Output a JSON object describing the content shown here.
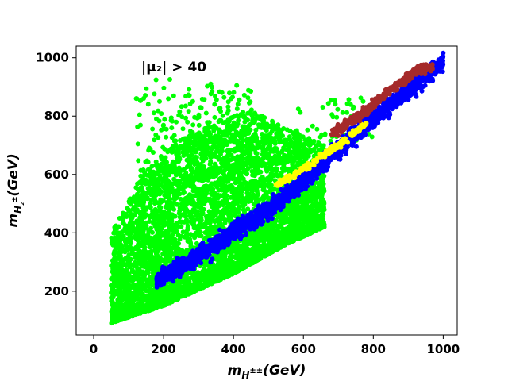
{
  "chart_data": {
    "type": "scatter",
    "annotation": "|μ₂| > 40",
    "xlabel": "m_{H^{±±}}(GeV)",
    "ylabel": "m_{H₂^±}(GeV)",
    "xlim": [
      -50,
      1040
    ],
    "ylim": [
      50,
      1040
    ],
    "xticks": [
      0,
      200,
      400,
      600,
      800,
      1000
    ],
    "yticks": [
      200,
      400,
      600,
      800,
      1000
    ],
    "grid": false,
    "series": [
      {
        "color": "#00ff00",
        "regions": [
          {
            "x_range": [
              50,
              660
            ],
            "lower": [
              [
                50,
                90
              ],
              [
                200,
                150
              ],
              [
                400,
                260
              ],
              [
                550,
                360
              ],
              [
                660,
                420
              ]
            ],
            "upper": [
              [
                50,
                400
              ],
              [
                150,
                620
              ],
              [
                250,
                720
              ],
              [
                350,
                780
              ],
              [
                450,
                820
              ],
              [
                550,
                760
              ],
              [
                660,
                700
              ]
            ],
            "count": 5200
          },
          {
            "x_range": [
              120,
              460
            ],
            "lower": [
              [
                120,
                500
              ],
              [
                460,
                640
              ]
            ],
            "upper": [
              [
                120,
                940
              ],
              [
                460,
                900
              ]
            ],
            "count": 350
          },
          {
            "x_range": [
              560,
              800
            ],
            "lower": [
              [
                560,
                700
              ],
              [
                800,
                720
              ]
            ],
            "upper": [
              [
                560,
                860
              ],
              [
                800,
                870
              ]
            ],
            "count": 60
          }
        ]
      },
      {
        "color": "#0000ff",
        "band": {
          "points": [
            [
              180,
              235
            ],
            [
              300,
              320
            ],
            [
              400,
              400
            ],
            [
              500,
              480
            ],
            [
              600,
              580
            ],
            [
              700,
              690
            ],
            [
              800,
              790
            ],
            [
              900,
              890
            ],
            [
              1000,
              985
            ]
          ],
          "width": 28
        },
        "count": 2200
      },
      {
        "color": "#ffff00",
        "band": {
          "points": [
            [
              520,
              560
            ],
            [
              600,
              620
            ],
            [
              700,
              700
            ],
            [
              780,
              775
            ]
          ],
          "width": 10
        },
        "count": 160
      },
      {
        "color": "#a52a2a",
        "band": {
          "points": [
            [
              680,
              740
            ],
            [
              760,
              800
            ],
            [
              840,
              880
            ],
            [
              930,
              960
            ],
            [
              970,
              970
            ]
          ],
          "width": 14
        },
        "count": 420
      }
    ]
  }
}
